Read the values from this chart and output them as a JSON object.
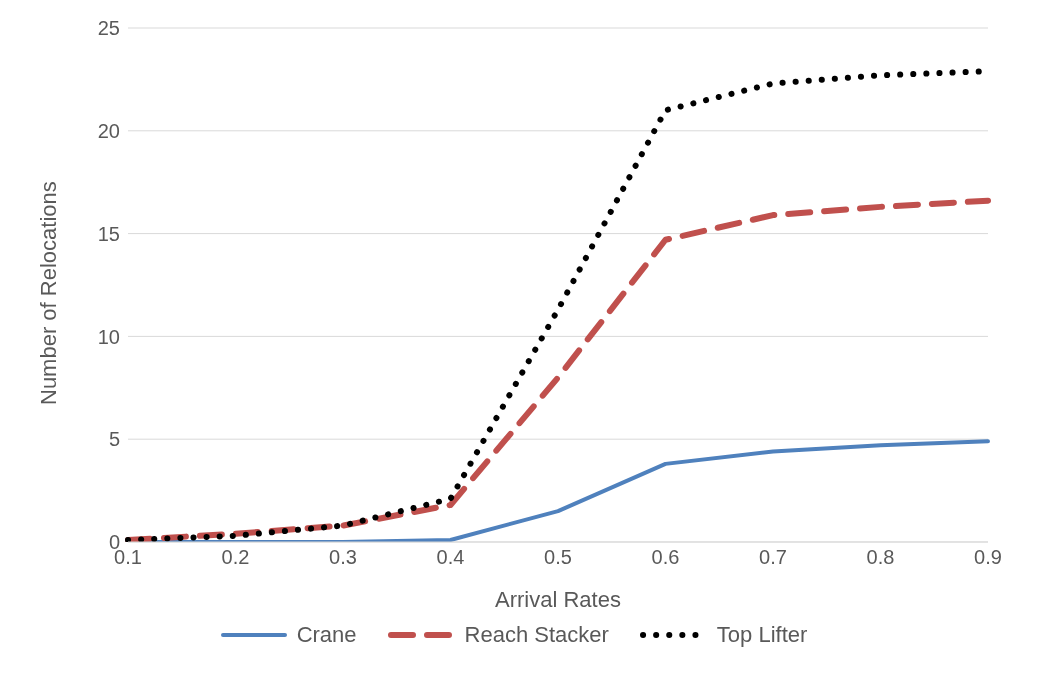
{
  "chart_data": {
    "type": "line",
    "xlabel": "Arrival Rates",
    "ylabel": "Number of Relocations",
    "categories": [
      "0.1",
      "0.2",
      "0.3",
      "0.4",
      "0.5",
      "0.6",
      "0.7",
      "0.8",
      "0.9"
    ],
    "series": [
      {
        "name": "Crane",
        "color": "#4f81bd",
        "line_style": "solid",
        "values": [
          0,
          0,
          0,
          0.1,
          1.5,
          3.8,
          4.4,
          4.7,
          4.9
        ]
      },
      {
        "name": "Reach Stacker",
        "color": "#c0504d",
        "line_style": "dashed",
        "values": [
          0.1,
          0.4,
          0.8,
          1.8,
          8,
          14.7,
          15.9,
          16.3,
          16.6
        ]
      },
      {
        "name": "Top Lifter",
        "color": "#000000",
        "line_style": "dotted",
        "values": [
          0.1,
          0.3,
          0.8,
          2.1,
          11.3,
          21,
          22.3,
          22.7,
          22.9
        ]
      }
    ],
    "ylim": [
      0,
      25
    ],
    "yticks": [
      0,
      5,
      10,
      15,
      20,
      25
    ],
    "grid": "y",
    "legend": "bottom",
    "marker": "none"
  }
}
